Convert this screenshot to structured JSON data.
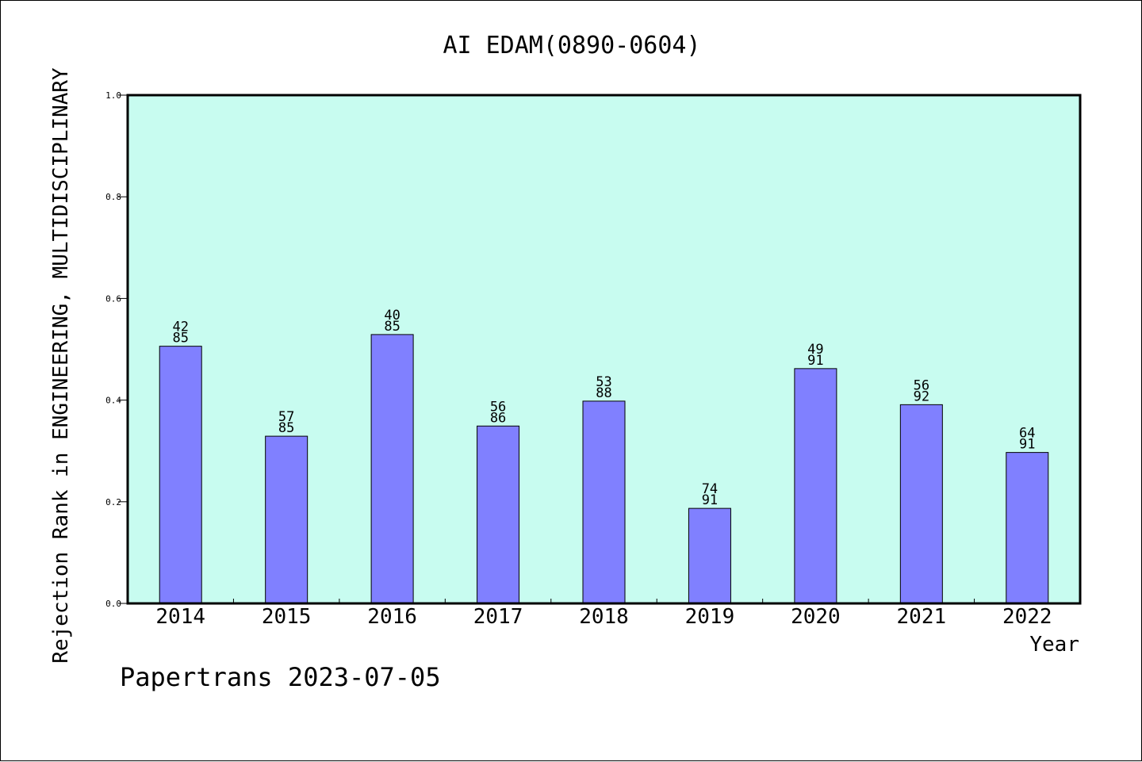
{
  "chart_data": {
    "type": "bar",
    "title": "AI EDAM(0890-0604)",
    "xlabel": "Year",
    "ylabel": "Rejection Rank in ENGINEERING, MULTIDISCIPLINARY",
    "categories": [
      "2014",
      "2015",
      "2016",
      "2017",
      "2018",
      "2019",
      "2020",
      "2021",
      "2022"
    ],
    "values": [
      0.506,
      0.329,
      0.529,
      0.349,
      0.398,
      0.187,
      0.462,
      0.391,
      0.297
    ],
    "rank_labels": [
      [
        "42",
        "85"
      ],
      [
        "57",
        "85"
      ],
      [
        "40",
        "85"
      ],
      [
        "56",
        "86"
      ],
      [
        "53",
        "88"
      ],
      [
        "74",
        "91"
      ],
      [
        "49",
        "91"
      ],
      [
        "56",
        "92"
      ],
      [
        "64",
        "91"
      ]
    ],
    "ylim": [
      0,
      1.0
    ],
    "yticks": [
      "0.0",
      "0.2",
      "0.4",
      "0.6",
      "0.8",
      "1.0"
    ],
    "grid": false,
    "colors": {
      "plot_background": "#c8fcf0",
      "bar_fill": "#8080ff",
      "bar_stroke": "#000000"
    }
  },
  "footer": "Papertrans 2023-07-05"
}
